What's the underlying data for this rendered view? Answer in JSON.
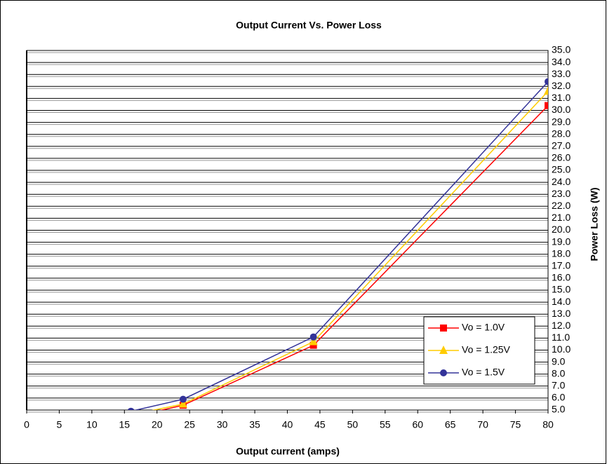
{
  "chart_data": {
    "type": "line",
    "title": "Output Current Vs. Power Loss",
    "x_label": "Output current (amps)",
    "y_label": "Power Loss (W)",
    "x": [
      16,
      24,
      44,
      80
    ],
    "series": [
      {
        "name": "Vo = 1.0V",
        "color": "#ff0000",
        "marker": "square",
        "values": [
          4.4,
          5.4,
          10.4,
          30.4
        ]
      },
      {
        "name": "Vo = 1.25V",
        "color": "#ffcc00",
        "marker": "triangle",
        "values": [
          4.6,
          5.5,
          10.7,
          31.6
        ]
      },
      {
        "name": "Vo = 1.5V",
        "color": "#333399",
        "marker": "circle",
        "values": [
          4.9,
          5.9,
          11.1,
          32.4
        ]
      }
    ],
    "xlim": [
      0,
      80
    ],
    "xticks": [
      0,
      5,
      10,
      15,
      20,
      25,
      30,
      35,
      40,
      45,
      50,
      55,
      60,
      65,
      70,
      75,
      80
    ],
    "ylim": [
      5,
      35
    ],
    "yticks": [
      {
        "value": 5,
        "label": "5.0"
      },
      {
        "value": 6,
        "label": "6.0"
      },
      {
        "value": 7,
        "label": "7.0"
      },
      {
        "value": 8,
        "label": "8.0"
      },
      {
        "value": 9,
        "label": "9.0"
      },
      {
        "value": 10,
        "label": "10.0"
      },
      {
        "value": 11,
        "label": "11.0"
      },
      {
        "value": 12,
        "label": "12.0"
      },
      {
        "value": 13,
        "label": "13.0"
      },
      {
        "value": 14,
        "label": "14.0"
      },
      {
        "value": 15,
        "label": "15.0"
      },
      {
        "value": 16,
        "label": "16.0"
      },
      {
        "value": 17,
        "label": "17.0"
      },
      {
        "value": 18,
        "label": "18.0"
      },
      {
        "value": 19,
        "label": "19.0"
      },
      {
        "value": 20,
        "label": "20.0"
      },
      {
        "value": 21,
        "label": "21.0"
      },
      {
        "value": 22,
        "label": "22.0"
      },
      {
        "value": 23,
        "label": "23.0"
      },
      {
        "value": 24,
        "label": "24.0"
      },
      {
        "value": 25,
        "label": "25.0"
      },
      {
        "value": 26,
        "label": "26.0"
      },
      {
        "value": 27,
        "label": "27.0"
      },
      {
        "value": 28,
        "label": "28.0"
      },
      {
        "value": 29,
        "label": "29.0"
      },
      {
        "value": 30,
        "label": "30.0"
      },
      {
        "value": 31,
        "label": "31.0"
      },
      {
        "value": 32,
        "label": "32.0"
      },
      {
        "value": 33,
        "label": "33.0"
      },
      {
        "value": 34,
        "label": "34.0"
      },
      {
        "value": 35,
        "label": "35.0"
      }
    ],
    "grid": true,
    "y_axis_side": "right",
    "legend": "lower right"
  }
}
